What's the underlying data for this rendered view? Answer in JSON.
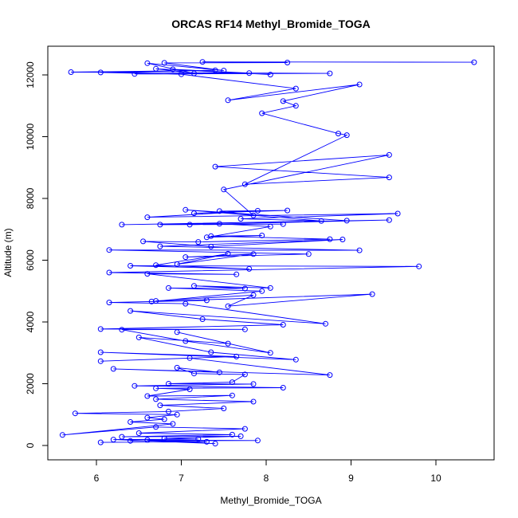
{
  "chart_data": {
    "type": "line",
    "title": "ORCAS RF14 Methyl_Bromide_TOGA",
    "xlabel": "Methyl_Bromide_TOGA",
    "ylabel": "Altitude (m)",
    "xlim": [
      5.6,
      10.5
    ],
    "ylim": [
      0,
      12400
    ],
    "xticks": [
      6,
      7,
      8,
      9,
      10
    ],
    "yticks": [
      0,
      2000,
      4000,
      6000,
      8000,
      10000,
      12000
    ],
    "grid": false,
    "series_color": "#0000ff",
    "markers": "open-circle",
    "series": [
      {
        "values": [
          [
            6.05,
            100
          ],
          [
            7.3,
            120
          ],
          [
            6.4,
            150
          ],
          [
            7.9,
            160
          ],
          [
            6.6,
            180
          ],
          [
            7.4,
            60
          ],
          [
            6.2,
            190
          ],
          [
            7.2,
            210
          ],
          [
            6.8,
            230
          ],
          [
            7.7,
            300
          ],
          [
            6.3,
            280
          ],
          [
            7.6,
            350
          ],
          [
            6.5,
            400
          ],
          [
            7.75,
            540
          ],
          [
            6.7,
            600
          ],
          [
            5.6,
            340
          ],
          [
            6.9,
            700
          ],
          [
            6.4,
            760
          ],
          [
            6.8,
            850
          ],
          [
            6.6,
            900
          ],
          [
            6.95,
            1000
          ],
          [
            5.75,
            1040
          ],
          [
            6.85,
            1100
          ],
          [
            7.5,
            1200
          ],
          [
            6.75,
            1300
          ],
          [
            7.85,
            1420
          ],
          [
            6.7,
            1500
          ],
          [
            7.6,
            1620
          ],
          [
            6.6,
            1600
          ],
          [
            7.1,
            1820
          ],
          [
            6.7,
            1850
          ],
          [
            8.2,
            1870
          ],
          [
            6.45,
            1930
          ],
          [
            7.85,
            1990
          ],
          [
            6.85,
            2000
          ],
          [
            7.6,
            2050
          ],
          [
            7.75,
            2300
          ],
          [
            7.15,
            2330
          ],
          [
            6.95,
            2520
          ],
          [
            7.45,
            2370
          ],
          [
            6.2,
            2480
          ],
          [
            8.75,
            2280
          ],
          [
            7.1,
            2830
          ],
          [
            6.05,
            2730
          ],
          [
            7.65,
            2880
          ],
          [
            6.05,
            3020
          ],
          [
            8.35,
            2780
          ],
          [
            7.35,
            3020
          ],
          [
            6.5,
            3500
          ],
          [
            7.55,
            3300
          ],
          [
            6.95,
            3670
          ],
          [
            8.05,
            3000
          ],
          [
            7.05,
            3380
          ],
          [
            6.3,
            3750
          ],
          [
            7.75,
            3760
          ],
          [
            6.05,
            3770
          ],
          [
            8.2,
            3910
          ],
          [
            7.25,
            4090
          ],
          [
            6.4,
            4360
          ],
          [
            8.7,
            3940
          ],
          [
            7.05,
            4590
          ],
          [
            6.15,
            4630
          ],
          [
            7.3,
            4700
          ],
          [
            6.7,
            4680
          ],
          [
            7.85,
            4870
          ],
          [
            7.55,
            4510
          ],
          [
            9.25,
            4900
          ],
          [
            6.65,
            4660
          ],
          [
            7.95,
            5000
          ],
          [
            6.85,
            5100
          ],
          [
            7.75,
            5080
          ],
          [
            7.15,
            5170
          ],
          [
            8.05,
            5100
          ],
          [
            6.6,
            5560
          ],
          [
            7.65,
            5540
          ],
          [
            6.15,
            5600
          ],
          [
            9.8,
            5800
          ],
          [
            6.4,
            5820
          ],
          [
            7.8,
            5720
          ],
          [
            6.7,
            5840
          ],
          [
            7.55,
            6210
          ],
          [
            6.95,
            5870
          ],
          [
            7.85,
            6200
          ],
          [
            7.05,
            6100
          ],
          [
            8.5,
            6200
          ],
          [
            6.15,
            6330
          ],
          [
            9.1,
            6320
          ],
          [
            6.75,
            6450
          ],
          [
            8.9,
            6670
          ],
          [
            7.35,
            6440
          ],
          [
            6.55,
            6610
          ],
          [
            7.2,
            6590
          ],
          [
            8.75,
            6680
          ],
          [
            7.35,
            6780
          ],
          [
            7.95,
            6800
          ],
          [
            7.3,
            6740
          ],
          [
            8.05,
            7090
          ],
          [
            7.45,
            7180
          ],
          [
            6.75,
            7150
          ],
          [
            8.2,
            7170
          ],
          [
            7.1,
            7150
          ],
          [
            9.45,
            7300
          ],
          [
            6.3,
            7150
          ],
          [
            8.95,
            7280
          ],
          [
            7.05,
            7630
          ],
          [
            8.65,
            7270
          ],
          [
            7.7,
            7340
          ],
          [
            9.55,
            7510
          ],
          [
            6.6,
            7390
          ],
          [
            7.9,
            7600
          ],
          [
            7.15,
            7520
          ],
          [
            8.25,
            7610
          ],
          [
            7.45,
            7590
          ],
          [
            7.85,
            7450
          ],
          [
            7.5,
            8290
          ],
          [
            9.45,
            9410
          ],
          [
            7.4,
            9030
          ],
          [
            9.45,
            8680
          ],
          [
            7.75,
            8460
          ],
          [
            8.95,
            10050
          ],
          [
            8.85,
            10100
          ],
          [
            7.95,
            10760
          ],
          [
            8.35,
            11000
          ],
          [
            8.2,
            11150
          ],
          [
            9.1,
            11690
          ],
          [
            7.55,
            11180
          ],
          [
            8.35,
            11560
          ],
          [
            7.0,
            12020
          ],
          [
            6.05,
            12080
          ],
          [
            7.4,
            12150
          ],
          [
            5.7,
            12090
          ],
          [
            8.75,
            12050
          ],
          [
            6.45,
            12030
          ],
          [
            7.8,
            12060
          ],
          [
            6.9,
            12180
          ],
          [
            8.05,
            12010
          ],
          [
            6.7,
            12200
          ],
          [
            7.15,
            12050
          ],
          [
            6.6,
            12380
          ],
          [
            7.5,
            12140
          ],
          [
            6.8,
            12390
          ],
          [
            8.25,
            12400
          ],
          [
            7.25,
            12420
          ],
          [
            10.45,
            12410
          ]
        ]
      }
    ]
  }
}
